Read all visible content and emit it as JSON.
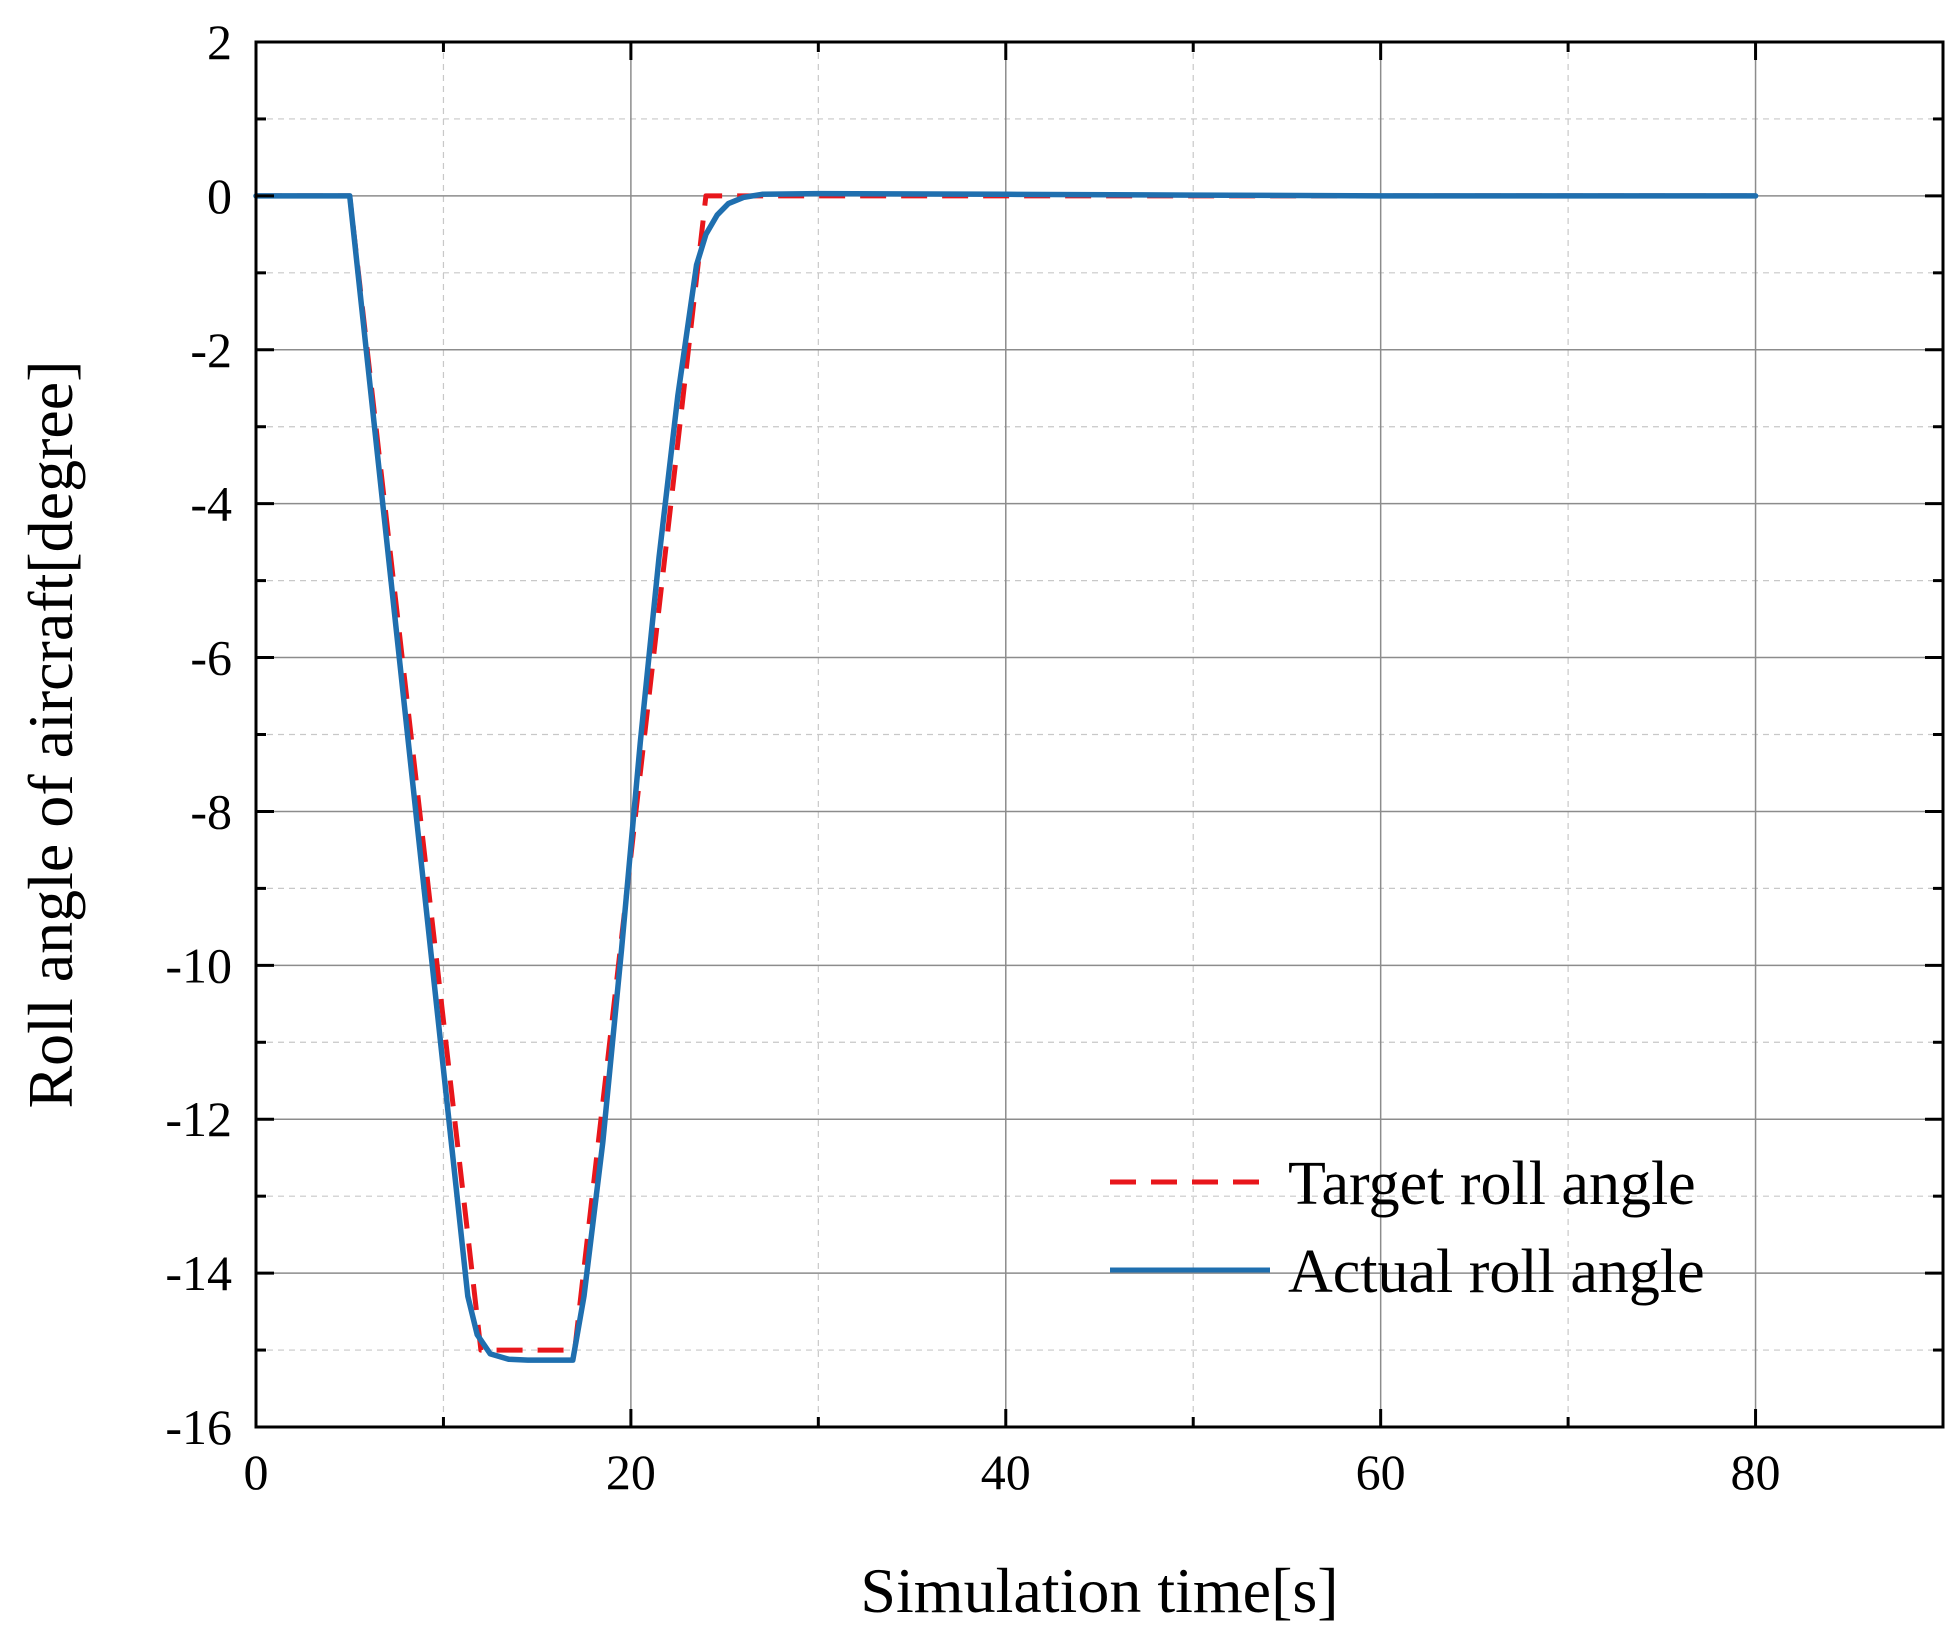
{
  "chart_data": {
    "type": "line",
    "title": "",
    "xlabel": "Simulation time[s]",
    "ylabel": "Roll angle of aircraft[degree]",
    "xlim": [
      0,
      90
    ],
    "ylim": [
      -16,
      2
    ],
    "x_ticks": [
      0,
      20,
      40,
      60,
      80
    ],
    "x_tick_labels": [
      "0",
      "20",
      "40",
      "60",
      "80"
    ],
    "y_ticks": [
      2,
      0,
      -2,
      -4,
      -6,
      -8,
      -10,
      -12,
      -14,
      -16
    ],
    "y_tick_labels": [
      "2",
      "0",
      "-2",
      "-4",
      "-6",
      "-8",
      "-10",
      "-12",
      "-14",
      "-16"
    ],
    "grid": true,
    "legend_position": "bottom-right",
    "series": [
      {
        "name": "Target roll angle",
        "style": "dashed",
        "color": "#e8161b",
        "x": [
          0,
          5,
          12,
          17,
          24,
          80
        ],
        "y": [
          0,
          0,
          -15,
          -15,
          0,
          0
        ]
      },
      {
        "name": "Actual roll angle",
        "style": "solid",
        "color": "#1f6faf",
        "x": [
          0,
          5,
          11.3,
          11.8,
          12.5,
          13.5,
          14.5,
          16.9,
          17.5,
          18.5,
          19.5,
          20.5,
          21.5,
          22.5,
          23.5,
          24.0,
          24.6,
          25.2,
          26.0,
          27.0,
          30,
          40,
          50,
          60,
          70,
          80
        ],
        "y": [
          0,
          0,
          -14.3,
          -14.8,
          -15.05,
          -15.12,
          -15.13,
          -15.13,
          -14.3,
          -12.3,
          -9.8,
          -7.1,
          -4.7,
          -2.6,
          -0.9,
          -0.5,
          -0.25,
          -0.1,
          -0.02,
          0.02,
          0.03,
          0.02,
          0.01,
          0,
          0,
          0
        ]
      }
    ]
  }
}
